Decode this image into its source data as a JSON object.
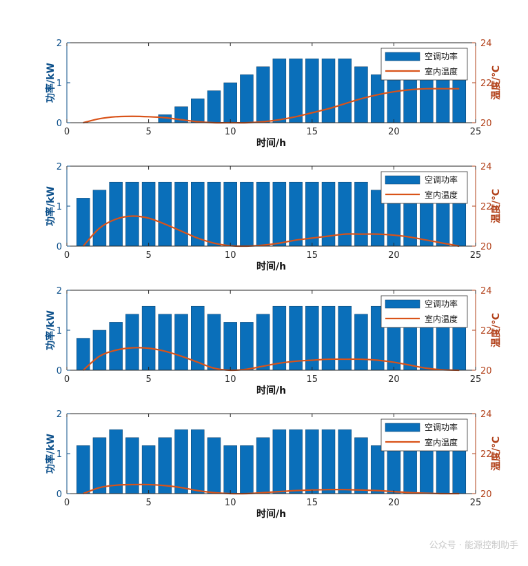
{
  "colors": {
    "bar": "#0a6fba",
    "line": "#d95319",
    "axis_left": "#0b4f8a",
    "axis_right": "#b2411a",
    "frame": "#262626"
  },
  "watermark": "公众号 · 能源控制助手",
  "chart_data": [
    {
      "type": "bar",
      "title": "",
      "xlabel": "时间/h",
      "ylabel": "功率/kW",
      "ylabel_right": "温度/℃",
      "xlim": [
        0,
        25
      ],
      "ylim": [
        0,
        2
      ],
      "ylim_right": [
        20,
        24
      ],
      "xticks": [
        "0",
        "5",
        "10",
        "15",
        "20",
        "25"
      ],
      "yticks": [
        "0",
        "1",
        "2"
      ],
      "yticks_right": [
        "20",
        "22",
        "24"
      ],
      "legend_position": "top-right",
      "series": [
        {
          "name": "空调功率",
          "type": "bar",
          "axis": "left",
          "x": [
            1,
            2,
            3,
            4,
            5,
            6,
            7,
            8,
            9,
            10,
            11,
            12,
            13,
            14,
            15,
            16,
            17,
            18,
            19,
            20,
            21,
            22,
            23,
            24
          ],
          "values": [
            0,
            0,
            0,
            0,
            0,
            0.2,
            0.4,
            0.6,
            0.8,
            1.0,
            1.2,
            1.4,
            1.6,
            1.6,
            1.6,
            1.6,
            1.6,
            1.4,
            1.2,
            1.2,
            1.2,
            1.2,
            1.2,
            1.2
          ]
        },
        {
          "name": "室内温度",
          "type": "line",
          "axis": "right",
          "x": [
            1,
            2,
            3,
            4,
            5,
            6,
            7,
            8,
            9,
            10,
            11,
            12,
            13,
            14,
            15,
            16,
            17,
            18,
            19,
            20,
            21,
            22,
            23,
            24
          ],
          "values": [
            20.0,
            20.2,
            20.3,
            20.32,
            20.3,
            20.25,
            20.15,
            20.05,
            20.0,
            20.0,
            20.0,
            20.05,
            20.15,
            20.3,
            20.5,
            20.7,
            20.95,
            21.2,
            21.4,
            21.55,
            21.65,
            21.7,
            21.7,
            21.7
          ]
        }
      ]
    },
    {
      "type": "bar",
      "title": "",
      "xlabel": "时间/h",
      "ylabel": "功率/kW",
      "ylabel_right": "温度/℃",
      "xlim": [
        0,
        25
      ],
      "ylim": [
        0,
        2
      ],
      "ylim_right": [
        20,
        24
      ],
      "xticks": [
        "0",
        "5",
        "10",
        "15",
        "20",
        "25"
      ],
      "yticks": [
        "0",
        "1",
        "2"
      ],
      "yticks_right": [
        "20",
        "22",
        "24"
      ],
      "legend_position": "top-right",
      "series": [
        {
          "name": "空调功率",
          "type": "bar",
          "axis": "left",
          "x": [
            1,
            2,
            3,
            4,
            5,
            6,
            7,
            8,
            9,
            10,
            11,
            12,
            13,
            14,
            15,
            16,
            17,
            18,
            19,
            20,
            21,
            22,
            23,
            24
          ],
          "values": [
            1.2,
            1.4,
            1.6,
            1.6,
            1.6,
            1.6,
            1.6,
            1.6,
            1.6,
            1.6,
            1.6,
            1.6,
            1.6,
            1.6,
            1.6,
            1.6,
            1.6,
            1.6,
            1.4,
            1.4,
            1.4,
            1.4,
            1.4,
            1.4
          ]
        },
        {
          "name": "室内温度",
          "type": "line",
          "axis": "right",
          "x": [
            1,
            2,
            3,
            4,
            5,
            6,
            7,
            8,
            9,
            10,
            11,
            12,
            13,
            14,
            15,
            16,
            17,
            18,
            19,
            20,
            21,
            22,
            23,
            24
          ],
          "values": [
            20.0,
            20.9,
            21.35,
            21.5,
            21.4,
            21.1,
            20.75,
            20.4,
            20.15,
            20.02,
            20.0,
            20.05,
            20.15,
            20.3,
            20.4,
            20.5,
            20.6,
            20.6,
            20.6,
            20.55,
            20.45,
            20.3,
            20.15,
            20.0
          ]
        }
      ]
    },
    {
      "type": "bar",
      "title": "",
      "xlabel": "时间/h",
      "ylabel": "功率/kW",
      "ylabel_right": "温度/℃",
      "xlim": [
        0,
        25
      ],
      "ylim": [
        0,
        2
      ],
      "ylim_right": [
        20,
        24
      ],
      "xticks": [
        "0",
        "5",
        "10",
        "15",
        "20",
        "25"
      ],
      "yticks": [
        "0",
        "1",
        "2"
      ],
      "yticks_right": [
        "20",
        "22",
        "24"
      ],
      "legend_position": "top-right",
      "series": [
        {
          "name": "空调功率",
          "type": "bar",
          "axis": "left",
          "x": [
            1,
            2,
            3,
            4,
            5,
            6,
            7,
            8,
            9,
            10,
            11,
            12,
            13,
            14,
            15,
            16,
            17,
            18,
            19,
            20,
            21,
            22,
            23,
            24
          ],
          "values": [
            0.8,
            1.0,
            1.2,
            1.4,
            1.6,
            1.4,
            1.4,
            1.6,
            1.4,
            1.2,
            1.2,
            1.4,
            1.6,
            1.6,
            1.6,
            1.6,
            1.6,
            1.4,
            1.6,
            1.6,
            1.4,
            1.4,
            1.4,
            1.4
          ]
        },
        {
          "name": "室内温度",
          "type": "line",
          "axis": "right",
          "x": [
            1,
            2,
            3,
            4,
            5,
            6,
            7,
            8,
            9,
            10,
            11,
            12,
            13,
            14,
            15,
            16,
            17,
            18,
            19,
            20,
            21,
            22,
            23,
            24
          ],
          "values": [
            20.0,
            20.7,
            21.0,
            21.12,
            21.1,
            20.95,
            20.7,
            20.4,
            20.1,
            20.0,
            20.05,
            20.2,
            20.35,
            20.45,
            20.5,
            20.55,
            20.55,
            20.55,
            20.5,
            20.4,
            20.25,
            20.1,
            20.02,
            20.0
          ]
        }
      ]
    },
    {
      "type": "bar",
      "title": "",
      "xlabel": "时间/h",
      "ylabel": "功率/kW",
      "ylabel_right": "温度/℃",
      "xlim": [
        0,
        25
      ],
      "ylim": [
        0,
        2
      ],
      "ylim_right": [
        20,
        24
      ],
      "xticks": [
        "0",
        "5",
        "10",
        "15",
        "20",
        "25"
      ],
      "yticks": [
        "0",
        "1",
        "2"
      ],
      "yticks_right": [
        "20",
        "22",
        "24"
      ],
      "legend_position": "top-right",
      "series": [
        {
          "name": "空调功率",
          "type": "bar",
          "axis": "left",
          "x": [
            1,
            2,
            3,
            4,
            5,
            6,
            7,
            8,
            9,
            10,
            11,
            12,
            13,
            14,
            15,
            16,
            17,
            18,
            19,
            20,
            21,
            22,
            23,
            24
          ],
          "values": [
            1.2,
            1.4,
            1.6,
            1.4,
            1.2,
            1.4,
            1.6,
            1.6,
            1.4,
            1.2,
            1.2,
            1.4,
            1.6,
            1.6,
            1.6,
            1.6,
            1.6,
            1.4,
            1.2,
            1.2,
            1.2,
            1.2,
            1.2,
            1.2
          ]
        },
        {
          "name": "室内温度",
          "type": "line",
          "axis": "right",
          "x": [
            1,
            2,
            3,
            4,
            5,
            6,
            7,
            8,
            9,
            10,
            11,
            12,
            13,
            14,
            15,
            16,
            17,
            18,
            19,
            20,
            21,
            22,
            23,
            24
          ],
          "values": [
            20.0,
            20.3,
            20.42,
            20.45,
            20.45,
            20.4,
            20.3,
            20.15,
            20.05,
            20.0,
            20.0,
            20.05,
            20.1,
            20.15,
            20.18,
            20.2,
            20.2,
            20.18,
            20.15,
            20.1,
            20.05,
            20.02,
            20.0,
            20.0
          ]
        }
      ]
    }
  ]
}
